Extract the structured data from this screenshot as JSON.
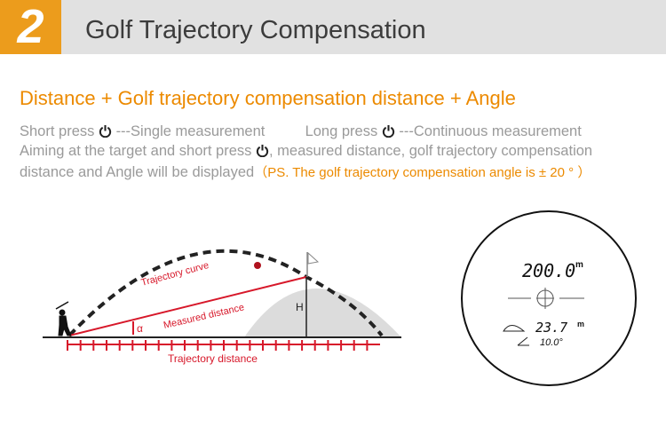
{
  "header": {
    "step_number": "2",
    "title": "Golf Trajectory Compensation"
  },
  "subtitle": "Distance + Golf trajectory compensation distance + Angle",
  "instructions": {
    "short_press": "Short press",
    "short_press_desc": "---Single measurement",
    "long_press": "Long press",
    "long_press_desc": "---Continuous measurement",
    "line2_a": "Aiming at the target and short press",
    "line2_b": ", measured distance, golf trajectory compensation",
    "line3": "distance and Angle will be displayed",
    "note": "（PS. The golf trajectory compensation angle is ± 20 ° ）"
  },
  "diagram": {
    "trajectory_curve": "Trajectory curve",
    "measured_distance": "Measured distance",
    "alpha": "α",
    "height": "H",
    "trajectory_distance": "Trajectory distance"
  },
  "display": {
    "distance": "200.0",
    "distance_unit": "m",
    "compensated": "23.7",
    "compensated_unit": "m",
    "angle": "10.0°"
  },
  "colors": {
    "accent": "#ec9c1c",
    "red": "#d7182a"
  }
}
